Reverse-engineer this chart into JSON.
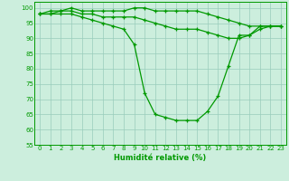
{
  "xlabel": "Humidité relative (%)",
  "background_color": "#cceedd",
  "grid_color": "#99ccbb",
  "line_color": "#009900",
  "xlim_min": -0.5,
  "xlim_max": 23.5,
  "ylim_min": 55,
  "ylim_max": 102,
  "yticks": [
    55,
    60,
    65,
    70,
    75,
    80,
    85,
    90,
    95,
    100
  ],
  "xticks": [
    0,
    1,
    2,
    3,
    4,
    5,
    6,
    7,
    8,
    9,
    10,
    11,
    12,
    13,
    14,
    15,
    16,
    17,
    18,
    19,
    20,
    21,
    22,
    23
  ],
  "line1": [
    98,
    99,
    99,
    100,
    99,
    99,
    99,
    99,
    99,
    100,
    100,
    99,
    99,
    99,
    99,
    99,
    98,
    97,
    96,
    95,
    94,
    94,
    94,
    94
  ],
  "line2": [
    98,
    98,
    99,
    99,
    98,
    98,
    97,
    97,
    97,
    97,
    96,
    95,
    94,
    93,
    93,
    93,
    92,
    91,
    90,
    90,
    91,
    93,
    94,
    94
  ],
  "line3": [
    98,
    98,
    98,
    98,
    97,
    96,
    95,
    94,
    93,
    88,
    72,
    65,
    64,
    63,
    63,
    63,
    66,
    71,
    81,
    91,
    91,
    94,
    94,
    94
  ],
  "marker": "+",
  "markersize": 3.5,
  "linewidth": 0.9,
  "tick_fontsize": 5.0,
  "xlabel_fontsize": 6.0
}
